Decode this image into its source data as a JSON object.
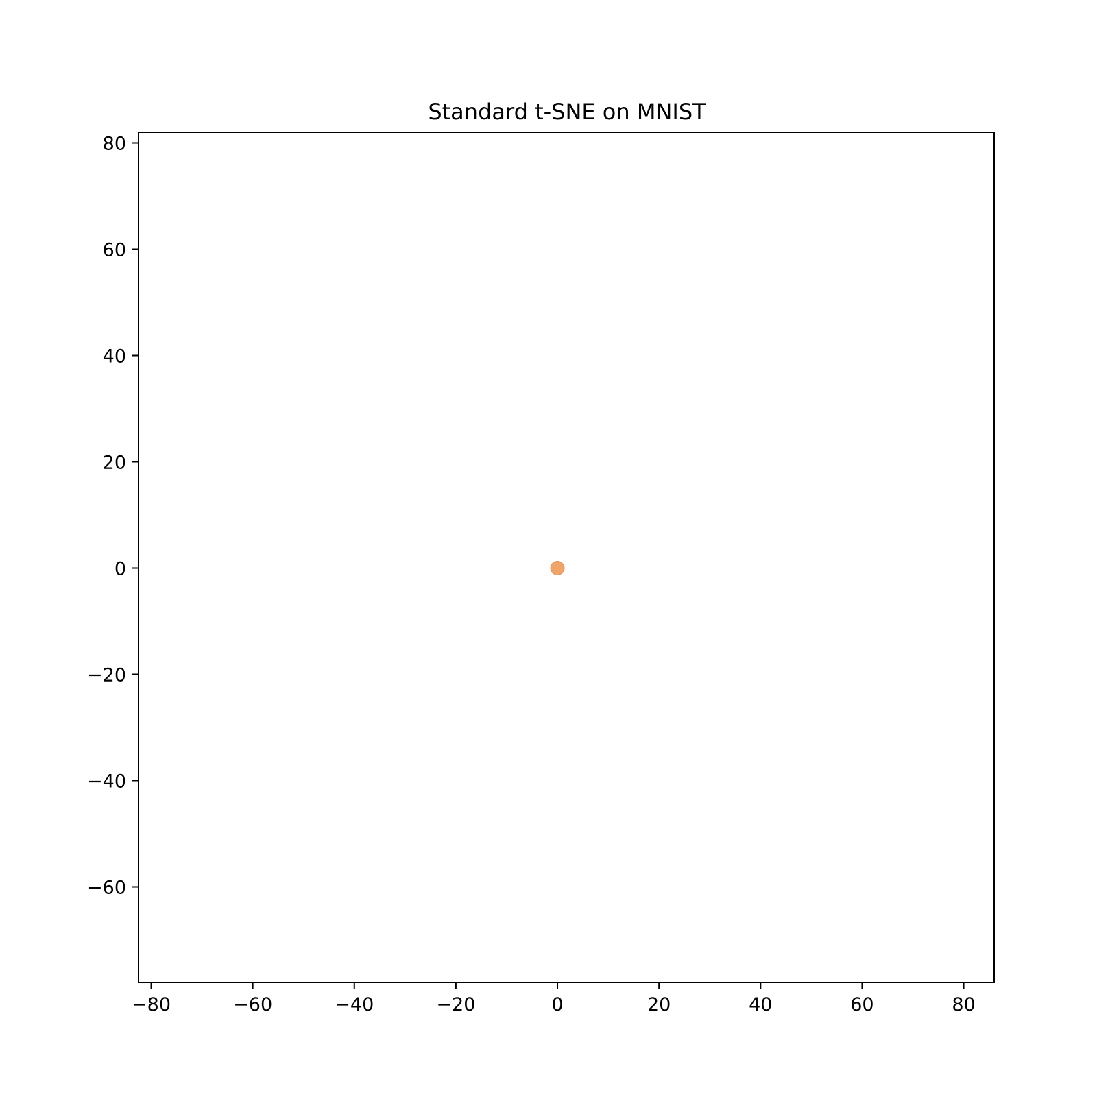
{
  "chart_data": {
    "type": "scatter",
    "title": "Standard t-SNE on MNIST",
    "xlabel": "",
    "ylabel": "",
    "xlim": [
      -82.5,
      86
    ],
    "ylim": [
      -78,
      82
    ],
    "x_ticks": [
      -80,
      -60,
      -40,
      -20,
      0,
      20,
      40,
      60,
      80
    ],
    "y_ticks": [
      -60,
      -40,
      -20,
      0,
      20,
      40,
      60,
      80
    ],
    "x_tick_labels": [
      "−80",
      "−60",
      "−40",
      "−20",
      "0",
      "20",
      "40",
      "60",
      "80"
    ],
    "y_tick_labels": [
      "−60",
      "−40",
      "−20",
      "0",
      "20",
      "40",
      "60",
      "80"
    ],
    "grid": false,
    "series": [
      {
        "color": "#f0a46a",
        "points": [
          {
            "x": 0,
            "y": 0
          }
        ]
      }
    ]
  }
}
